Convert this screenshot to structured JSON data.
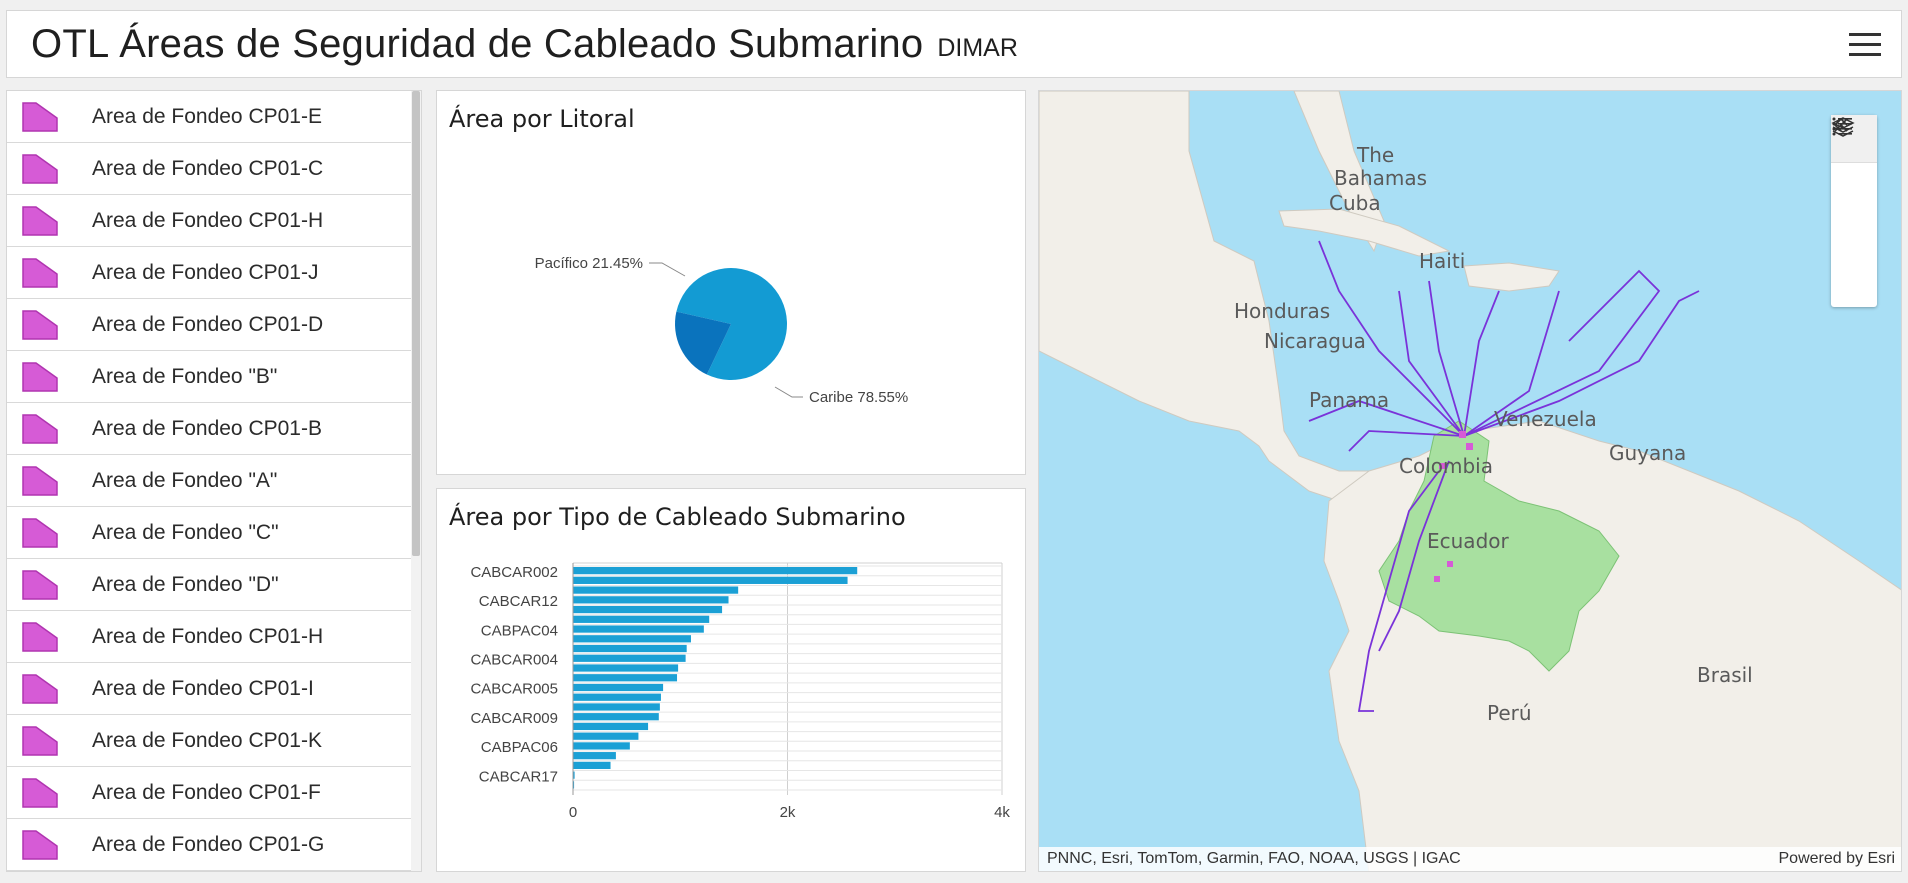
{
  "header": {
    "title": "OTL Áreas de Seguridad de Cableado Submarino",
    "subtitle": "DIMAR",
    "menu_icon": "hamburger-icon"
  },
  "list": {
    "symbol_color": "#d65bd6",
    "items": [
      {
        "label": "Area de Fondeo CP01-E"
      },
      {
        "label": "Area de Fondeo CP01-C"
      },
      {
        "label": "Area de Fondeo CP01-H"
      },
      {
        "label": "Area de Fondeo CP01-J"
      },
      {
        "label": "Area de Fondeo CP01-D"
      },
      {
        "label": "Area de Fondeo \"B\""
      },
      {
        "label": "Area de Fondeo CP01-B"
      },
      {
        "label": "Area de Fondeo \"A\""
      },
      {
        "label": "Area de Fondeo \"C\""
      },
      {
        "label": "Area de Fondeo \"D\""
      },
      {
        "label": "Area de Fondeo CP01-H"
      },
      {
        "label": "Area de Fondeo CP01-I"
      },
      {
        "label": "Area de Fondeo CP01-K"
      },
      {
        "label": "Area de Fondeo CP01-F"
      },
      {
        "label": "Area de Fondeo CP01-G"
      }
    ]
  },
  "pie_card": {
    "title": "Área por Litoral"
  },
  "bar_card": {
    "title": "Área por Tipo de Cableado Submarino"
  },
  "chart_data": [
    {
      "type": "pie",
      "title": "Área por Litoral",
      "slices": [
        {
          "label": "Caribe 78.55%",
          "name": "Caribe",
          "value": 78.55,
          "color": "#139bd3"
        },
        {
          "label": "Pacífico 21.45%",
          "name": "Pacífico",
          "value": 21.45,
          "color": "#0a73bd"
        }
      ]
    },
    {
      "type": "bar",
      "orientation": "horizontal",
      "title": "Área por Tipo de Cableado Submarino",
      "color": "#1ba0d5",
      "xlim": [
        0,
        4000
      ],
      "xticks": [
        "0",
        "2k",
        "4k"
      ],
      "tick_labels": [
        "CABCAR002",
        "CABCAR12",
        "CABPAC04",
        "CABCAR004",
        "CABCAR005",
        "CABCAR009",
        "CABPAC06",
        "CABCAR17"
      ],
      "values": [
        2650,
        2560,
        1540,
        1450,
        1390,
        1270,
        1220,
        1100,
        1060,
        1050,
        980,
        970,
        840,
        820,
        810,
        800,
        700,
        610,
        530,
        400,
        350,
        15,
        10
      ]
    }
  ],
  "map": {
    "attribution": "PNNC, Esri, TomTom, Garmin, FAO, NOAA, USGS | IGAC",
    "powered": "Powered by Esri",
    "labels": [
      {
        "text": "The"
      },
      {
        "text": "Bahamas"
      },
      {
        "text": "Cuba"
      },
      {
        "text": "Haiti"
      },
      {
        "text": "Honduras"
      },
      {
        "text": "Nicaragua"
      },
      {
        "text": "Panama"
      },
      {
        "text": "Venezuela"
      },
      {
        "text": "Colombia"
      },
      {
        "text": "Guyana"
      },
      {
        "text": "Ecuador"
      },
      {
        "text": "Brasil"
      },
      {
        "text": "Perú"
      }
    ],
    "tools": [
      "collapse-up-icon",
      "legend-icon",
      "layers-icon",
      "collapse-left-icon"
    ]
  }
}
